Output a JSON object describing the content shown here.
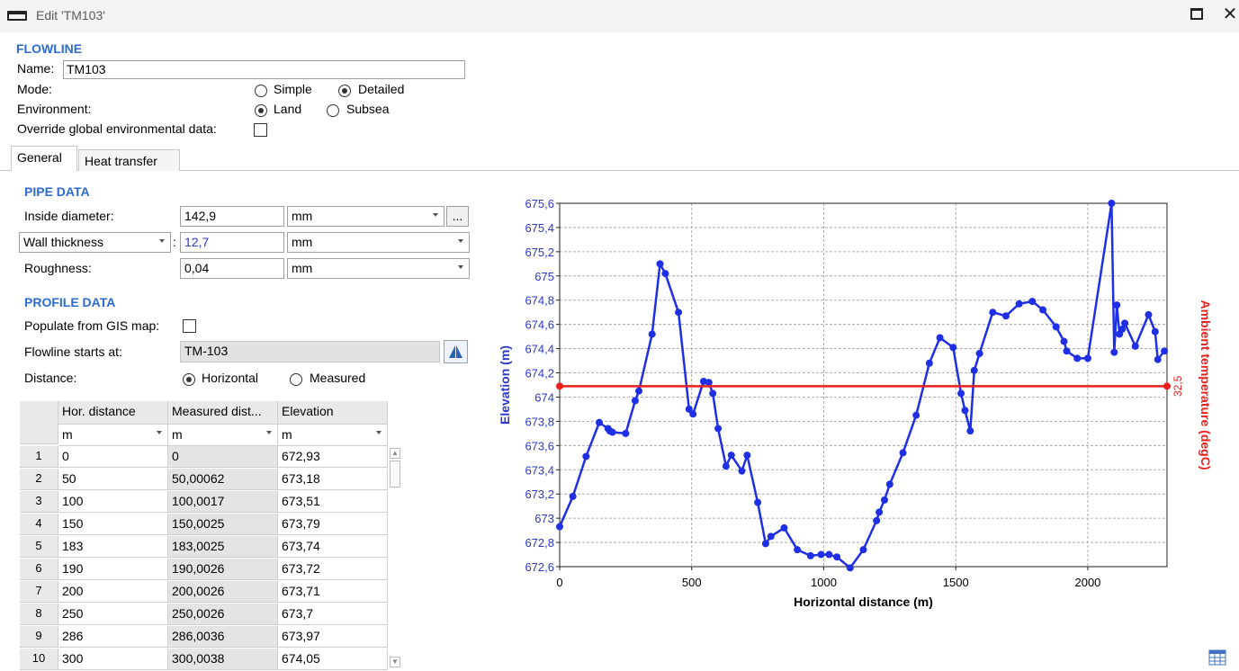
{
  "window": {
    "title": "Edit 'TM103'"
  },
  "flowline": {
    "section_title": "FLOWLINE",
    "name_label": "Name:",
    "name_value": "TM103",
    "mode_label": "Mode:",
    "mode_simple": "Simple",
    "mode_detailed": "Detailed",
    "mode_selected": "Detailed",
    "environment_label": "Environment:",
    "env_land": "Land",
    "env_subsea": "Subsea",
    "env_selected": "Land",
    "override_label": "Override global environmental data:",
    "override_checked": false
  },
  "tabs": [
    {
      "label": "General",
      "active": true
    },
    {
      "label": "Heat transfer",
      "active": false
    }
  ],
  "pipe": {
    "section_title": "PIPE DATA",
    "inside_diameter_label": "Inside diameter:",
    "inside_diameter_value": "142,9",
    "inside_diameter_unit": "mm",
    "browse_label": "...",
    "wall_thickness_selector": "Wall thickness",
    "wall_thickness_value": "12,7",
    "wall_thickness_unit": "mm",
    "roughness_label": "Roughness:",
    "roughness_value": "0,04",
    "roughness_unit": "mm"
  },
  "profile": {
    "section_title": "PROFILE DATA",
    "populate_label": "Populate from GIS map:",
    "populate_checked": false,
    "starts_label": "Flowline starts at:",
    "starts_value": "TM-103",
    "distance_label": "Distance:",
    "distance_horizontal": "Horizontal",
    "distance_measured": "Measured",
    "distance_selected": "Horizontal"
  },
  "table": {
    "columns": [
      "Hor. distance",
      "Measured dist...",
      "Elevation"
    ],
    "units": [
      "m",
      "m",
      "m"
    ],
    "rows": [
      [
        "1",
        "0",
        "0",
        "672,93"
      ],
      [
        "2",
        "50",
        "50,00062",
        "673,18"
      ],
      [
        "3",
        "100",
        "100,0017",
        "673,51"
      ],
      [
        "4",
        "150",
        "150,0025",
        "673,79"
      ],
      [
        "5",
        "183",
        "183,0025",
        "673,74"
      ],
      [
        "6",
        "190",
        "190,0026",
        "673,72"
      ],
      [
        "7",
        "200",
        "200,0026",
        "673,71"
      ],
      [
        "8",
        "250",
        "250,0026",
        "673,7"
      ],
      [
        "9",
        "286",
        "286,0036",
        "673,97"
      ],
      [
        "10",
        "300",
        "300,0038",
        "674,05"
      ]
    ]
  },
  "chart_data": {
    "type": "line",
    "xlabel": "Horizontal distance (m)",
    "ylabel": "Elevation (m)",
    "y2label": "Ambient temperature (degC)",
    "xlim": [
      0,
      2300
    ],
    "ylim": [
      672.6,
      675.6
    ],
    "x_ticks": [
      "0",
      "500",
      "1000",
      "1500",
      "2000"
    ],
    "y_ticks": [
      "672,6",
      "672,8",
      "673",
      "673,2",
      "673,4",
      "673,6",
      "673,8",
      "674",
      "674,2",
      "674,4",
      "674,6",
      "674,8",
      "675",
      "675,2",
      "675,4",
      "675,6"
    ],
    "grid": true,
    "series": [
      {
        "name": "Elevation",
        "color": "#1f2fe6",
        "points": [
          [
            0,
            672.93
          ],
          [
            50,
            673.18
          ],
          [
            100,
            673.51
          ],
          [
            150,
            673.79
          ],
          [
            183,
            673.74
          ],
          [
            190,
            673.72
          ],
          [
            200,
            673.71
          ],
          [
            250,
            673.7
          ],
          [
            286,
            673.97
          ],
          [
            300,
            674.05
          ],
          [
            350,
            674.52
          ],
          [
            380,
            675.1
          ],
          [
            400,
            675.02
          ],
          [
            450,
            674.7
          ],
          [
            490,
            673.9
          ],
          [
            505,
            673.86
          ],
          [
            545,
            674.13
          ],
          [
            565,
            674.12
          ],
          [
            580,
            674.03
          ],
          [
            600,
            673.74
          ],
          [
            630,
            673.43
          ],
          [
            650,
            673.52
          ],
          [
            690,
            673.39
          ],
          [
            710,
            673.52
          ],
          [
            750,
            673.13
          ],
          [
            780,
            672.79
          ],
          [
            800,
            672.85
          ],
          [
            850,
            672.92
          ],
          [
            900,
            672.74
          ],
          [
            950,
            672.69
          ],
          [
            990,
            672.7
          ],
          [
            1020,
            672.7
          ],
          [
            1050,
            672.68
          ],
          [
            1100,
            672.59
          ],
          [
            1150,
            672.74
          ],
          [
            1200,
            672.98
          ],
          [
            1210,
            673.05
          ],
          [
            1230,
            673.15
          ],
          [
            1250,
            673.28
          ],
          [
            1300,
            673.54
          ],
          [
            1350,
            673.85
          ],
          [
            1400,
            674.28
          ],
          [
            1440,
            674.49
          ],
          [
            1490,
            674.41
          ],
          [
            1520,
            674.03
          ],
          [
            1535,
            673.89
          ],
          [
            1555,
            673.72
          ],
          [
            1570,
            674.22
          ],
          [
            1590,
            674.36
          ],
          [
            1640,
            674.7
          ],
          [
            1690,
            674.67
          ],
          [
            1740,
            674.77
          ],
          [
            1790,
            674.79
          ],
          [
            1830,
            674.72
          ],
          [
            1880,
            674.58
          ],
          [
            1910,
            674.46
          ],
          [
            1920,
            674.38
          ],
          [
            1960,
            674.32
          ],
          [
            2000,
            674.32
          ],
          [
            2090,
            675.6
          ],
          [
            2100,
            674.37
          ],
          [
            2110,
            674.76
          ],
          [
            2120,
            674.52
          ],
          [
            2130,
            674.56
          ],
          [
            2140,
            674.61
          ],
          [
            2180,
            674.42
          ],
          [
            2230,
            674.68
          ],
          [
            2255,
            674.54
          ],
          [
            2265,
            674.31
          ],
          [
            2290,
            674.38
          ]
        ]
      },
      {
        "name": "Ambient temperature",
        "color": "#e8201e",
        "value_label": "32,5",
        "points": [
          [
            0,
            674.09
          ],
          [
            2300,
            674.09
          ]
        ]
      }
    ]
  }
}
